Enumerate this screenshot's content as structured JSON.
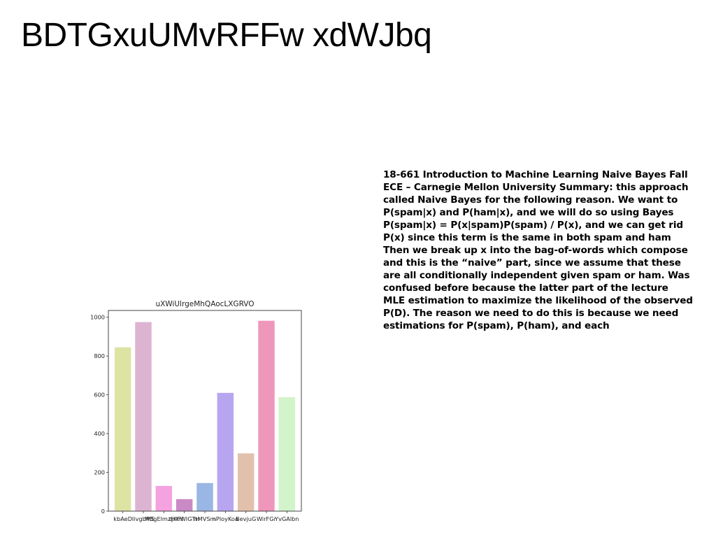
{
  "slide": {
    "title": "BDTGxuUMvRFFw xdWJbq"
  },
  "text_block": {
    "lines": [
      "18-661 Introduction to Machine Learning Naive Bayes Fall",
      "ECE – Carnegie Mellon University Summary: this approach",
      "called Naive Bayes for the following reason. We want to",
      "P(spam|x) and P(ham|x), and we will do so using Bayes",
      "P(spam|x) = P(x|spam)P(spam) / P(x), and we can get rid",
      "P(x) since this term is the same in both spam and ham",
      "Then we break up x into the bag-of-words which compose",
      "and this is the “naive” part, since we assume that these",
      "are all conditionally independent given spam or ham. Was",
      "confused before because the latter part of the lecture",
      "MLE estimation to maximize the likelihood of the observed",
      "P(D). The reason we need to do this is because we need",
      "estimations for P(spam), P(ham), and each"
    ]
  },
  "chart_data": {
    "type": "bar",
    "title": "uXWiUlrgeMhQAocLXGRVO",
    "xlabel": "",
    "ylabel": "",
    "categories": [
      "kbAeD",
      "IivgbMS",
      "MBgElmzHXH",
      "tjXFWIGTH",
      "hMVSm",
      "nPloyKoa",
      "BevjuG",
      "WirFGr",
      "YvGAlbn"
    ],
    "values": [
      845,
      975,
      130,
      62,
      145,
      610,
      298,
      982,
      588
    ],
    "colors": [
      "#dde3a3",
      "#ddb3d2",
      "#f5a2e0",
      "#c98ac6",
      "#9ab6e4",
      "#b8a5f0",
      "#e2c1ac",
      "#ef97bb",
      "#d3f3cb"
    ],
    "ylim": [
      0,
      1035
    ],
    "yticks": [
      0,
      200,
      400,
      600,
      800,
      1000
    ],
    "grid": false,
    "legend": "none"
  }
}
